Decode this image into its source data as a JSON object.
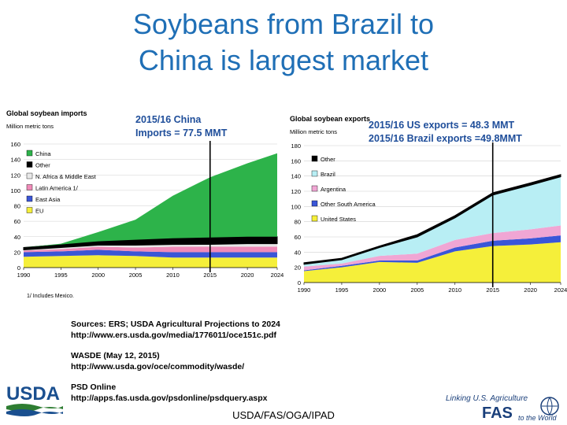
{
  "slide": {
    "title_line1": "Soybeans from Brazil to",
    "title_line2": "China is largest market",
    "imports_callout_line1": "2015/16 China",
    "imports_callout_line2": "Imports = 77.5 MMT",
    "exports_callout_line1": "2015/16 US exports = 48.3 MMT",
    "exports_callout_line2": "2015/16 Brazil exports =49.8MMT",
    "sources_line1": "Sources: ERS; USDA Agricultural Projections to 2024",
    "sources_line2": "http://www.ers.usda.gov/media/1776011/oce151c.pdf",
    "wasde_line1": "WASDE (May 12, 2015)",
    "wasde_line2": "http://www.usda.gov/oce/commodity/wasde/",
    "psd_line1": "PSD Online",
    "psd_line2": "http://apps.fas.usda.gov/psdonline/psdquery.aspx",
    "footer": "USDA/FAS/OGA/IPAD",
    "usda_logo_text": "USDA",
    "fas_logo_line1": "Linking U.S. Agriculture",
    "fas_logo_line2": "FAS",
    "fas_logo_line3": "to the World"
  },
  "colors": {
    "title": "#1f6fb6",
    "callout": "#1f4e9a",
    "china": "#2db34a",
    "other_black": "#000000",
    "nafrica": "#e8e8e8",
    "latam": "#f08ab8",
    "eastasia": "#3b56d6",
    "eu": "#f5ef3a",
    "brazil": "#b8eef4",
    "argentina": "#f0a6d4",
    "other_south_america": "#3a56d8",
    "united_states": "#f5ef3a"
  },
  "chart_data": [
    {
      "type": "area",
      "title": "Global soybean imports",
      "ylabel": "Million metric tons",
      "ylim": [
        0,
        160
      ],
      "yticks": [
        0,
        20,
        40,
        60,
        80,
        100,
        120,
        140,
        160
      ],
      "x_ticks": [
        "1990",
        "1995",
        "2000",
        "2005",
        "2010",
        "2015",
        "2020",
        "2024"
      ],
      "footnote": "1/ Includes Mexico.",
      "stacked": true,
      "x": [
        1990,
        1995,
        2000,
        2005,
        2010,
        2015,
        2020,
        2024
      ],
      "series": [
        {
          "name": "EU",
          "color": "#f5ef3a",
          "values": [
            14,
            15,
            16,
            15,
            13,
            13,
            13,
            13
          ]
        },
        {
          "name": "East Asia",
          "color": "#3b56d6",
          "values": [
            6,
            6,
            7,
            6,
            7,
            7,
            7,
            7
          ]
        },
        {
          "name": "Latin America 1/",
          "color": "#f08ab8",
          "values": [
            2,
            3,
            4,
            5,
            7,
            7,
            7,
            7
          ]
        },
        {
          "name": "N. Africa & Middle East",
          "color": "#e8e8e8",
          "values": [
            1,
            2,
            2,
            3,
            3,
            3,
            4,
            4
          ]
        },
        {
          "name": "Other",
          "color": "#000000",
          "values": [
            3,
            4,
            5,
            7,
            8,
            9,
            9,
            9
          ]
        },
        {
          "name": "China",
          "color": "#2db34a",
          "values": [
            0,
            1,
            12,
            26,
            55,
            78,
            95,
            108
          ]
        }
      ],
      "annotation_year": 2015
    },
    {
      "type": "area",
      "title": "Global soybean exports",
      "ylabel": "Million metric tons",
      "ylim": [
        0,
        180
      ],
      "yticks": [
        0,
        20,
        40,
        60,
        80,
        100,
        120,
        140,
        160,
        180
      ],
      "x_ticks": [
        "1990",
        "1995",
        "2000",
        "2005",
        "2010",
        "2015",
        "2020",
        "2024"
      ],
      "stacked": true,
      "x": [
        1990,
        1995,
        2000,
        2005,
        2010,
        2015,
        2020,
        2024
      ],
      "series": [
        {
          "name": "United States",
          "color": "#f5ef3a",
          "values": [
            15,
            20,
            27,
            26,
            41,
            48,
            50,
            53
          ]
        },
        {
          "name": "Other South America",
          "color": "#3a56d8",
          "values": [
            1,
            2,
            2,
            3,
            5,
            7,
            8,
            9
          ]
        },
        {
          "name": "Argentina",
          "color": "#f0a6d4",
          "values": [
            5,
            3,
            6,
            9,
            10,
            10,
            12,
            13
          ]
        },
        {
          "name": "Brazil",
          "color": "#b8eef4",
          "values": [
            3,
            5,
            11,
            22,
            29,
            50,
            58,
            64
          ]
        },
        {
          "name": "Other",
          "color": "#000000",
          "values": [
            2,
            2,
            2,
            3,
            3,
            3,
            3,
            3
          ]
        }
      ],
      "annotation_year": 2015
    }
  ]
}
